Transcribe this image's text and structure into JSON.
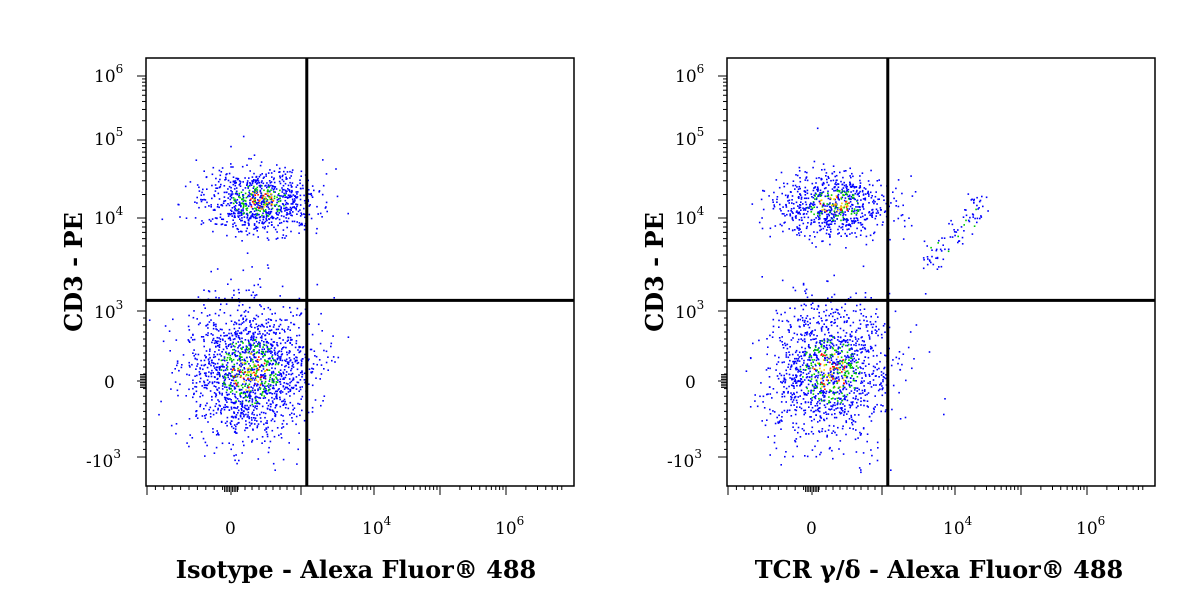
{
  "chart_data": [
    {
      "type": "scatter",
      "xlabel": "Isotype - Alexa Fluor® 488",
      "ylabel": "CD3 - PE",
      "x_scale": "biexponential",
      "y_scale": "biexponential",
      "xlim": [
        -3000,
        1000000
      ],
      "ylim": [
        -3000,
        1000000
      ],
      "x_ticks": [
        {
          "base": "0",
          "exp": ""
        },
        {
          "base": "10",
          "exp": "4"
        },
        {
          "base": "10",
          "exp": "6"
        }
      ],
      "y_ticks": [
        {
          "base": "10",
          "exp": "6"
        },
        {
          "base": "10",
          "exp": "5"
        },
        {
          "base": "10",
          "exp": "4"
        },
        {
          "base": "10",
          "exp": "3"
        },
        {
          "base": "0",
          "exp": ""
        },
        {
          "base": "-10",
          "exp": "3"
        }
      ],
      "gate": {
        "x": 1200,
        "y": 1300
      },
      "populations": [
        {
          "x_center": 400,
          "y_center": 17000,
          "count": 900
        },
        {
          "x_center": 250,
          "y_center": 150,
          "count": 1700
        }
      ]
    },
    {
      "type": "scatter",
      "xlabel": "TCR γ/δ - Alexa Fluor® 488",
      "ylabel": "CD3 - PE",
      "x_scale": "biexponential",
      "y_scale": "biexponential",
      "xlim": [
        -3000,
        1000000
      ],
      "ylim": [
        -3000,
        1000000
      ],
      "x_ticks": [
        {
          "base": "0",
          "exp": ""
        },
        {
          "base": "10",
          "exp": "4"
        },
        {
          "base": "10",
          "exp": "6"
        }
      ],
      "y_ticks": [
        {
          "base": "10",
          "exp": "6"
        },
        {
          "base": "10",
          "exp": "5"
        },
        {
          "base": "10",
          "exp": "4"
        },
        {
          "base": "10",
          "exp": "3"
        },
        {
          "base": "0",
          "exp": ""
        },
        {
          "base": "-10",
          "exp": "3"
        }
      ],
      "gate": {
        "x": 1200,
        "y": 1300
      },
      "populations": [
        {
          "x_center": 300,
          "y_center": 15000,
          "count": 800
        },
        {
          "x_center": 250,
          "y_center": 150,
          "count": 1400
        },
        {
          "x_center": 15000,
          "y_center": 8000,
          "count": 90
        }
      ]
    }
  ],
  "colors": {
    "low": "#0000ff",
    "mid": "#00c800",
    "high": "#ffd200",
    "peak": "#ff0000",
    "frame": "#000000"
  }
}
